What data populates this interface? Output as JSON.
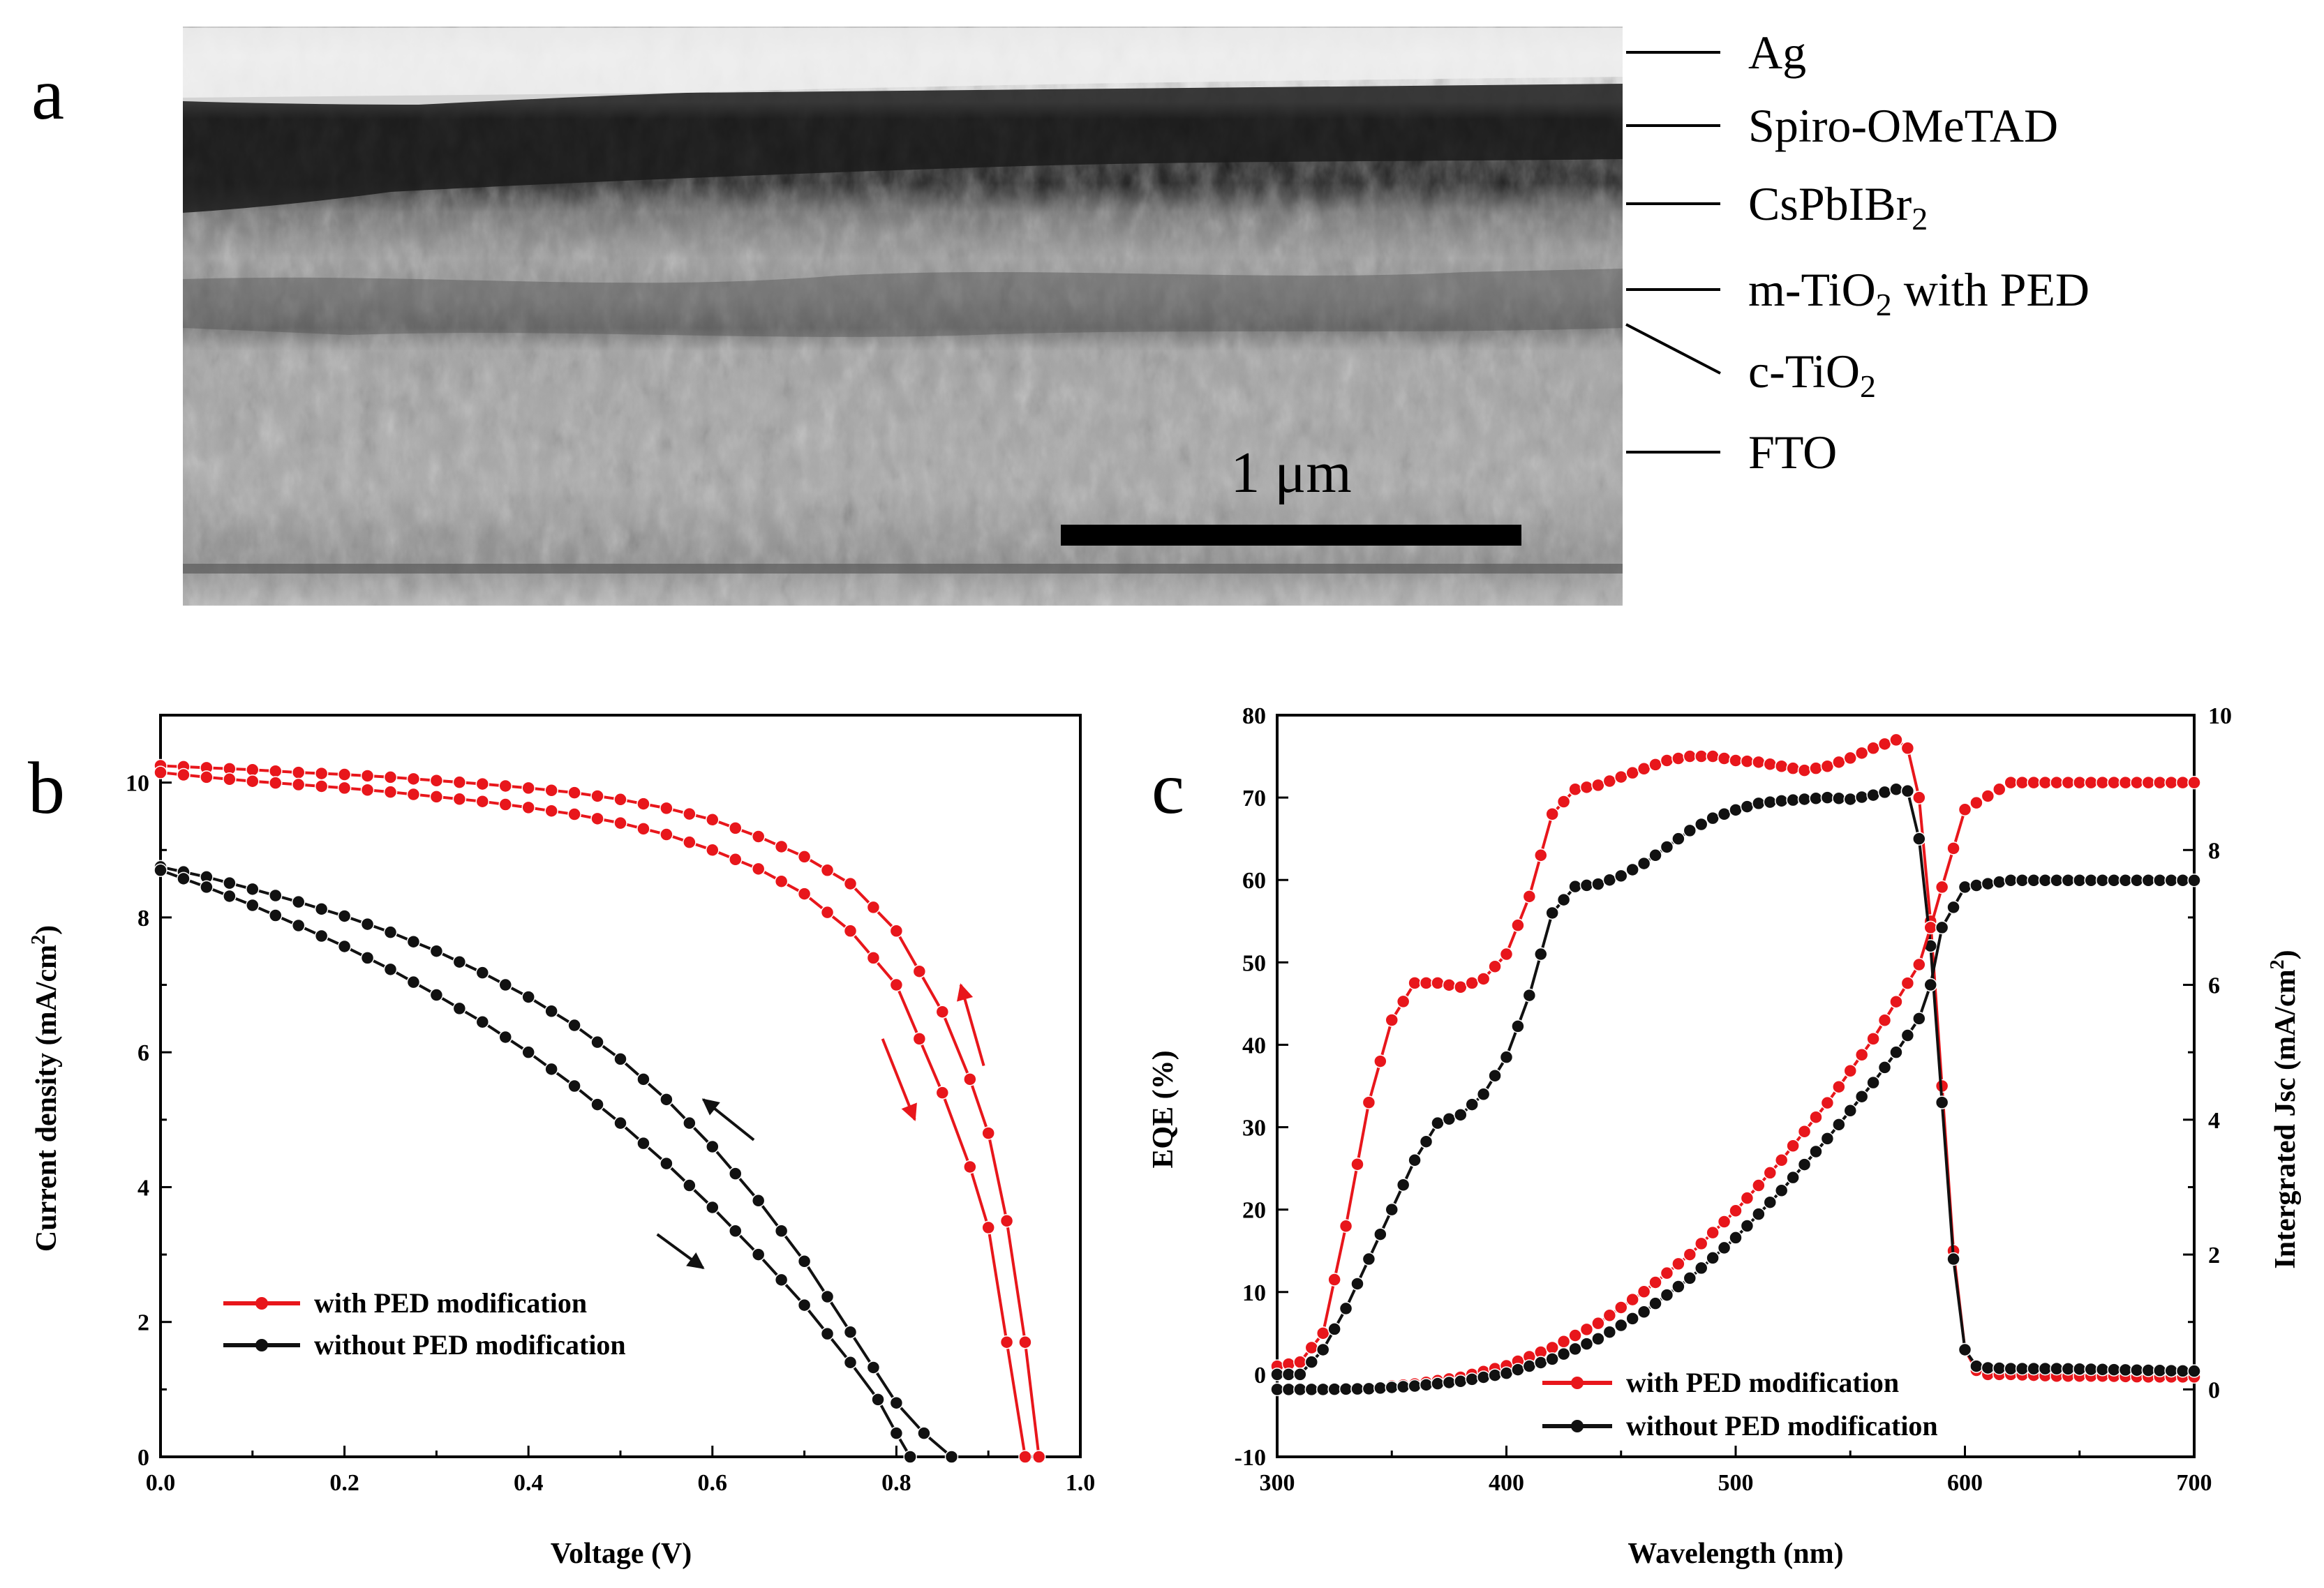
{
  "panel_a": {
    "letter": "a",
    "layers": [
      "Ag",
      "Spiro-OMeTAD",
      "CsPbIBr",
      "m-TiO",
      "c-TiO",
      "FTO"
    ],
    "layer_subs": [
      "",
      "",
      "2",
      "2",
      "2",
      ""
    ],
    "layer_suffix": [
      "",
      "",
      "",
      " with PED",
      "",
      ""
    ],
    "scale_bar": "1 μm"
  },
  "chart_data": [
    {
      "panel": "b",
      "type": "line",
      "xlabel": "Voltage (V)",
      "ylabel": "Current density (mA/cm",
      "ylabel_sup": "2",
      "ylabel_end": ")",
      "xlim": [
        0,
        1.0
      ],
      "ylim": [
        0,
        11
      ],
      "xticks": [
        "0.0",
        "0.2",
        "0.4",
        "0.6",
        "0.8",
        "1.0"
      ],
      "yticks": [
        "0",
        "2",
        "4",
        "6",
        "8",
        "10"
      ],
      "legend": [
        "with PED modification",
        "without PED modification"
      ],
      "legend_position": "lower-left",
      "series": [
        {
          "name": "with PED modification (reverse)",
          "color": "#e8161b",
          "x": [
            0.0,
            0.05,
            0.1,
            0.15,
            0.2,
            0.25,
            0.3,
            0.35,
            0.4,
            0.45,
            0.5,
            0.55,
            0.6,
            0.65,
            0.7,
            0.75,
            0.8,
            0.85,
            0.88,
            0.9,
            0.92,
            0.94,
            0.955
          ],
          "y": [
            10.25,
            10.22,
            10.19,
            10.15,
            10.12,
            10.08,
            10.03,
            9.98,
            9.92,
            9.85,
            9.75,
            9.62,
            9.45,
            9.2,
            8.9,
            8.5,
            7.8,
            6.6,
            5.6,
            4.8,
            3.5,
            1.7,
            0.0
          ]
        },
        {
          "name": "with PED modification (forward)",
          "color": "#e8161b",
          "x": [
            0.0,
            0.05,
            0.1,
            0.15,
            0.2,
            0.25,
            0.3,
            0.35,
            0.4,
            0.45,
            0.5,
            0.55,
            0.6,
            0.65,
            0.7,
            0.75,
            0.8,
            0.85,
            0.88,
            0.9,
            0.92,
            0.94
          ],
          "y": [
            10.15,
            10.08,
            10.02,
            9.97,
            9.92,
            9.86,
            9.79,
            9.72,
            9.63,
            9.53,
            9.4,
            9.23,
            9.0,
            8.72,
            8.35,
            7.8,
            7.0,
            5.4,
            4.3,
            3.4,
            1.7,
            0.0
          ]
        },
        {
          "name": "without PED modification (reverse)",
          "color": "#111111",
          "x": [
            0.0,
            0.05,
            0.1,
            0.15,
            0.2,
            0.25,
            0.3,
            0.35,
            0.4,
            0.45,
            0.5,
            0.55,
            0.6,
            0.65,
            0.7,
            0.75,
            0.8,
            0.83,
            0.86
          ],
          "y": [
            8.75,
            8.6,
            8.42,
            8.23,
            8.02,
            7.78,
            7.5,
            7.18,
            6.82,
            6.4,
            5.9,
            5.3,
            4.6,
            3.8,
            2.9,
            1.85,
            0.8,
            0.35,
            0.0
          ]
        },
        {
          "name": "without PED modification (forward)",
          "color": "#111111",
          "x": [
            0.0,
            0.05,
            0.1,
            0.15,
            0.2,
            0.25,
            0.3,
            0.35,
            0.4,
            0.45,
            0.5,
            0.55,
            0.6,
            0.65,
            0.7,
            0.75,
            0.78,
            0.8,
            0.815
          ],
          "y": [
            8.7,
            8.45,
            8.18,
            7.88,
            7.57,
            7.23,
            6.85,
            6.45,
            6.0,
            5.5,
            4.95,
            4.35,
            3.7,
            3.0,
            2.25,
            1.4,
            0.85,
            0.35,
            0.0
          ]
        }
      ],
      "arrows": [
        {
          "color": "#e8161b",
          "from": [
            0.785,
            6.2
          ],
          "to": [
            0.82,
            5.0
          ]
        },
        {
          "color": "#e8161b",
          "from": [
            0.895,
            5.8
          ],
          "to": [
            0.87,
            7.0
          ]
        },
        {
          "color": "#111111",
          "from": [
            0.54,
            3.3
          ],
          "to": [
            0.59,
            2.8
          ]
        },
        {
          "color": "#111111",
          "from": [
            0.645,
            4.7
          ],
          "to": [
            0.59,
            5.3
          ]
        }
      ]
    },
    {
      "panel": "c",
      "type": "line",
      "xlabel": "Wavelength (nm)",
      "ylabel": "EQE (%)",
      "y2label": "Intergrated Jsc (mA/cm",
      "y2label_sup": "2",
      "y2label_end": ")",
      "xlim": [
        300,
        700
      ],
      "ylim": [
        -10,
        80
      ],
      "y2lim": [
        -1,
        10
      ],
      "xticks": [
        "300",
        "400",
        "500",
        "600",
        "700"
      ],
      "yticks": [
        "-10",
        "0",
        "10",
        "20",
        "30",
        "40",
        "50",
        "60",
        "70",
        "80"
      ],
      "y2ticks": [
        "0",
        "2",
        "4",
        "6",
        "8",
        "10"
      ],
      "legend": [
        "with PED modification",
        "without PED modification"
      ],
      "legend_position": "bottom-center",
      "series": [
        {
          "name": "with PED modification EQE",
          "axis": "left",
          "color": "#e8161b",
          "x": [
            300,
            310,
            320,
            330,
            340,
            350,
            360,
            370,
            380,
            390,
            400,
            410,
            420,
            430,
            440,
            450,
            460,
            470,
            480,
            490,
            500,
            510,
            520,
            530,
            540,
            550,
            560,
            570,
            575,
            580,
            585,
            590,
            595,
            600,
            605,
            610,
            620,
            640,
            660,
            680,
            700
          ],
          "y": [
            1,
            1.5,
            5,
            18,
            33,
            43,
            47.5,
            47.5,
            47,
            48,
            51,
            58,
            68,
            71,
            71.5,
            72.5,
            73.5,
            74.5,
            75,
            75,
            74.5,
            74.3,
            73.8,
            73.3,
            73.8,
            74.8,
            76,
            77,
            76,
            70,
            55,
            35,
            15,
            3,
            0.5,
            0,
            0,
            -0.2,
            -0.2,
            -0.3,
            -0.3
          ]
        },
        {
          "name": "without PED modification EQE",
          "axis": "left",
          "color": "#111111",
          "x": [
            300,
            310,
            320,
            330,
            340,
            350,
            360,
            370,
            380,
            390,
            400,
            410,
            420,
            430,
            440,
            450,
            460,
            470,
            480,
            490,
            500,
            510,
            520,
            530,
            540,
            550,
            560,
            570,
            575,
            580,
            585,
            590,
            595,
            600,
            605,
            610,
            620,
            640,
            660,
            680,
            700
          ],
          "y": [
            0,
            0,
            3,
            8,
            14,
            20,
            26,
            30.5,
            31.5,
            34,
            38.5,
            46,
            56,
            59.2,
            59.5,
            60.5,
            62,
            64,
            66,
            67.5,
            68.5,
            69.3,
            69.6,
            69.8,
            70.0,
            69.8,
            70.3,
            71,
            70.8,
            65,
            52,
            33,
            14,
            3,
            1,
            0.8,
            0.7,
            0.7,
            0.6,
            0.5,
            0.4
          ]
        },
        {
          "name": "with PED modification Jsc",
          "axis": "right",
          "color": "#e8161b",
          "x": [
            300,
            320,
            340,
            360,
            380,
            400,
            420,
            440,
            460,
            480,
            500,
            520,
            540,
            560,
            570,
            580,
            585,
            590,
            600,
            620,
            640,
            660,
            680,
            700
          ],
          "y": [
            0,
            0,
            0.02,
            0.08,
            0.18,
            0.35,
            0.62,
            0.98,
            1.45,
            2.0,
            2.65,
            3.4,
            4.25,
            5.2,
            5.75,
            6.3,
            6.85,
            7.45,
            8.6,
            9.0,
            9.0,
            9.0,
            9.0,
            9.0
          ]
        },
        {
          "name": "without PED modification Jsc",
          "axis": "right",
          "color": "#111111",
          "x": [
            300,
            320,
            340,
            360,
            380,
            400,
            420,
            440,
            460,
            480,
            500,
            520,
            540,
            560,
            570,
            580,
            585,
            590,
            600,
            620,
            640,
            660,
            680,
            700
          ],
          "y": [
            0,
            0,
            0.01,
            0.05,
            0.12,
            0.24,
            0.45,
            0.75,
            1.15,
            1.65,
            2.25,
            2.95,
            3.72,
            4.55,
            5.0,
            5.5,
            6.0,
            6.85,
            7.45,
            7.55,
            7.55,
            7.55,
            7.55,
            7.55
          ]
        }
      ]
    }
  ]
}
